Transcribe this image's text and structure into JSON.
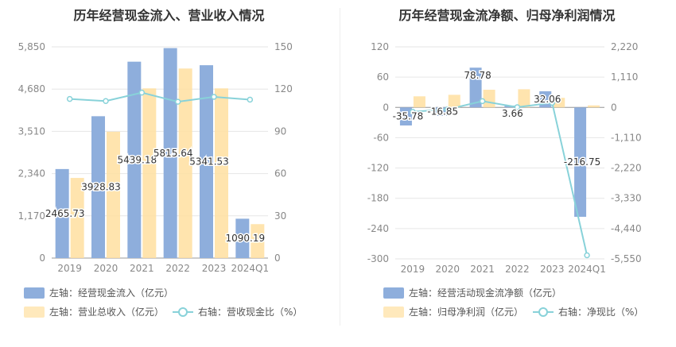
{
  "colors": {
    "bar_primary": "#8eaedc",
    "bar_secondary": "#ffdfa0",
    "line": "#88d2d9",
    "axis_text": "#888888",
    "grid": "#e6e6e6"
  },
  "chart_data": [
    {
      "type": "bar",
      "title": "历年经营现金流入、营业收入情况",
      "categories": [
        "2019",
        "2020",
        "2021",
        "2022",
        "2023",
        "2024Q1"
      ],
      "left_axis": {
        "ticks": [
          "0",
          "1,170",
          "2,340",
          "3,510",
          "4,680",
          "5,850"
        ],
        "ylim": [
          0,
          5850
        ]
      },
      "right_axis": {
        "ticks": [
          "0",
          "30",
          "60",
          "90",
          "120",
          "150"
        ],
        "ylim": [
          0,
          150
        ]
      },
      "series": [
        {
          "name": "左轴：经营现金流入（亿元）",
          "axis": "left",
          "type": "bar",
          "values": [
            2465.73,
            3928.83,
            5439.18,
            5815.64,
            5341.53,
            1090.19
          ],
          "labels": [
            "2465.73",
            "3928.83",
            "5439.18",
            "5815.64",
            "5341.53",
            "1090.19"
          ]
        },
        {
          "name": "左轴：营业总收入（亿元）",
          "axis": "left",
          "type": "bar",
          "values": [
            2220,
            3500,
            4700,
            5250,
            4700,
            940
          ]
        },
        {
          "name": "右轴：营收现金比（%）",
          "axis": "right",
          "type": "line",
          "values": [
            113,
            111.5,
            117.5,
            111,
            114.5,
            112.5
          ]
        }
      ]
    },
    {
      "type": "bar",
      "title": "历年经营现金流净额、归母净利润情况",
      "categories": [
        "2019",
        "2020",
        "2021",
        "2022",
        "2023",
        "2024Q1"
      ],
      "left_axis": {
        "ticks": [
          "-300",
          "-240",
          "-180",
          "-120",
          "-60",
          "0",
          "60",
          "120"
        ],
        "ylim": [
          -300,
          120
        ]
      },
      "right_axis": {
        "ticks": [
          "-5,550",
          "-4,440",
          "-3,330",
          "-2,220",
          "-1,110",
          "0",
          "1,110",
          "2,220"
        ],
        "ylim": [
          -5550,
          2220
        ]
      },
      "series": [
        {
          "name": "左轴：经营活动现金流净额（亿元）",
          "axis": "left",
          "type": "bar",
          "values": [
            -35.78,
            -16.85,
            78.78,
            3.66,
            32.06,
            -216.75
          ],
          "labels": [
            "-35.78",
            "-16.85",
            "78.78",
            "3.66",
            "32.06",
            "-216.75"
          ]
        },
        {
          "name": "左轴：归母净利润（亿元）",
          "axis": "left",
          "type": "bar",
          "values": [
            22,
            25,
            35,
            36,
            19,
            4
          ]
        },
        {
          "name": "右轴：净现比（%）",
          "axis": "right",
          "type": "line",
          "values": [
            -160,
            -70,
            230,
            10,
            170,
            -5420
          ]
        }
      ]
    }
  ]
}
